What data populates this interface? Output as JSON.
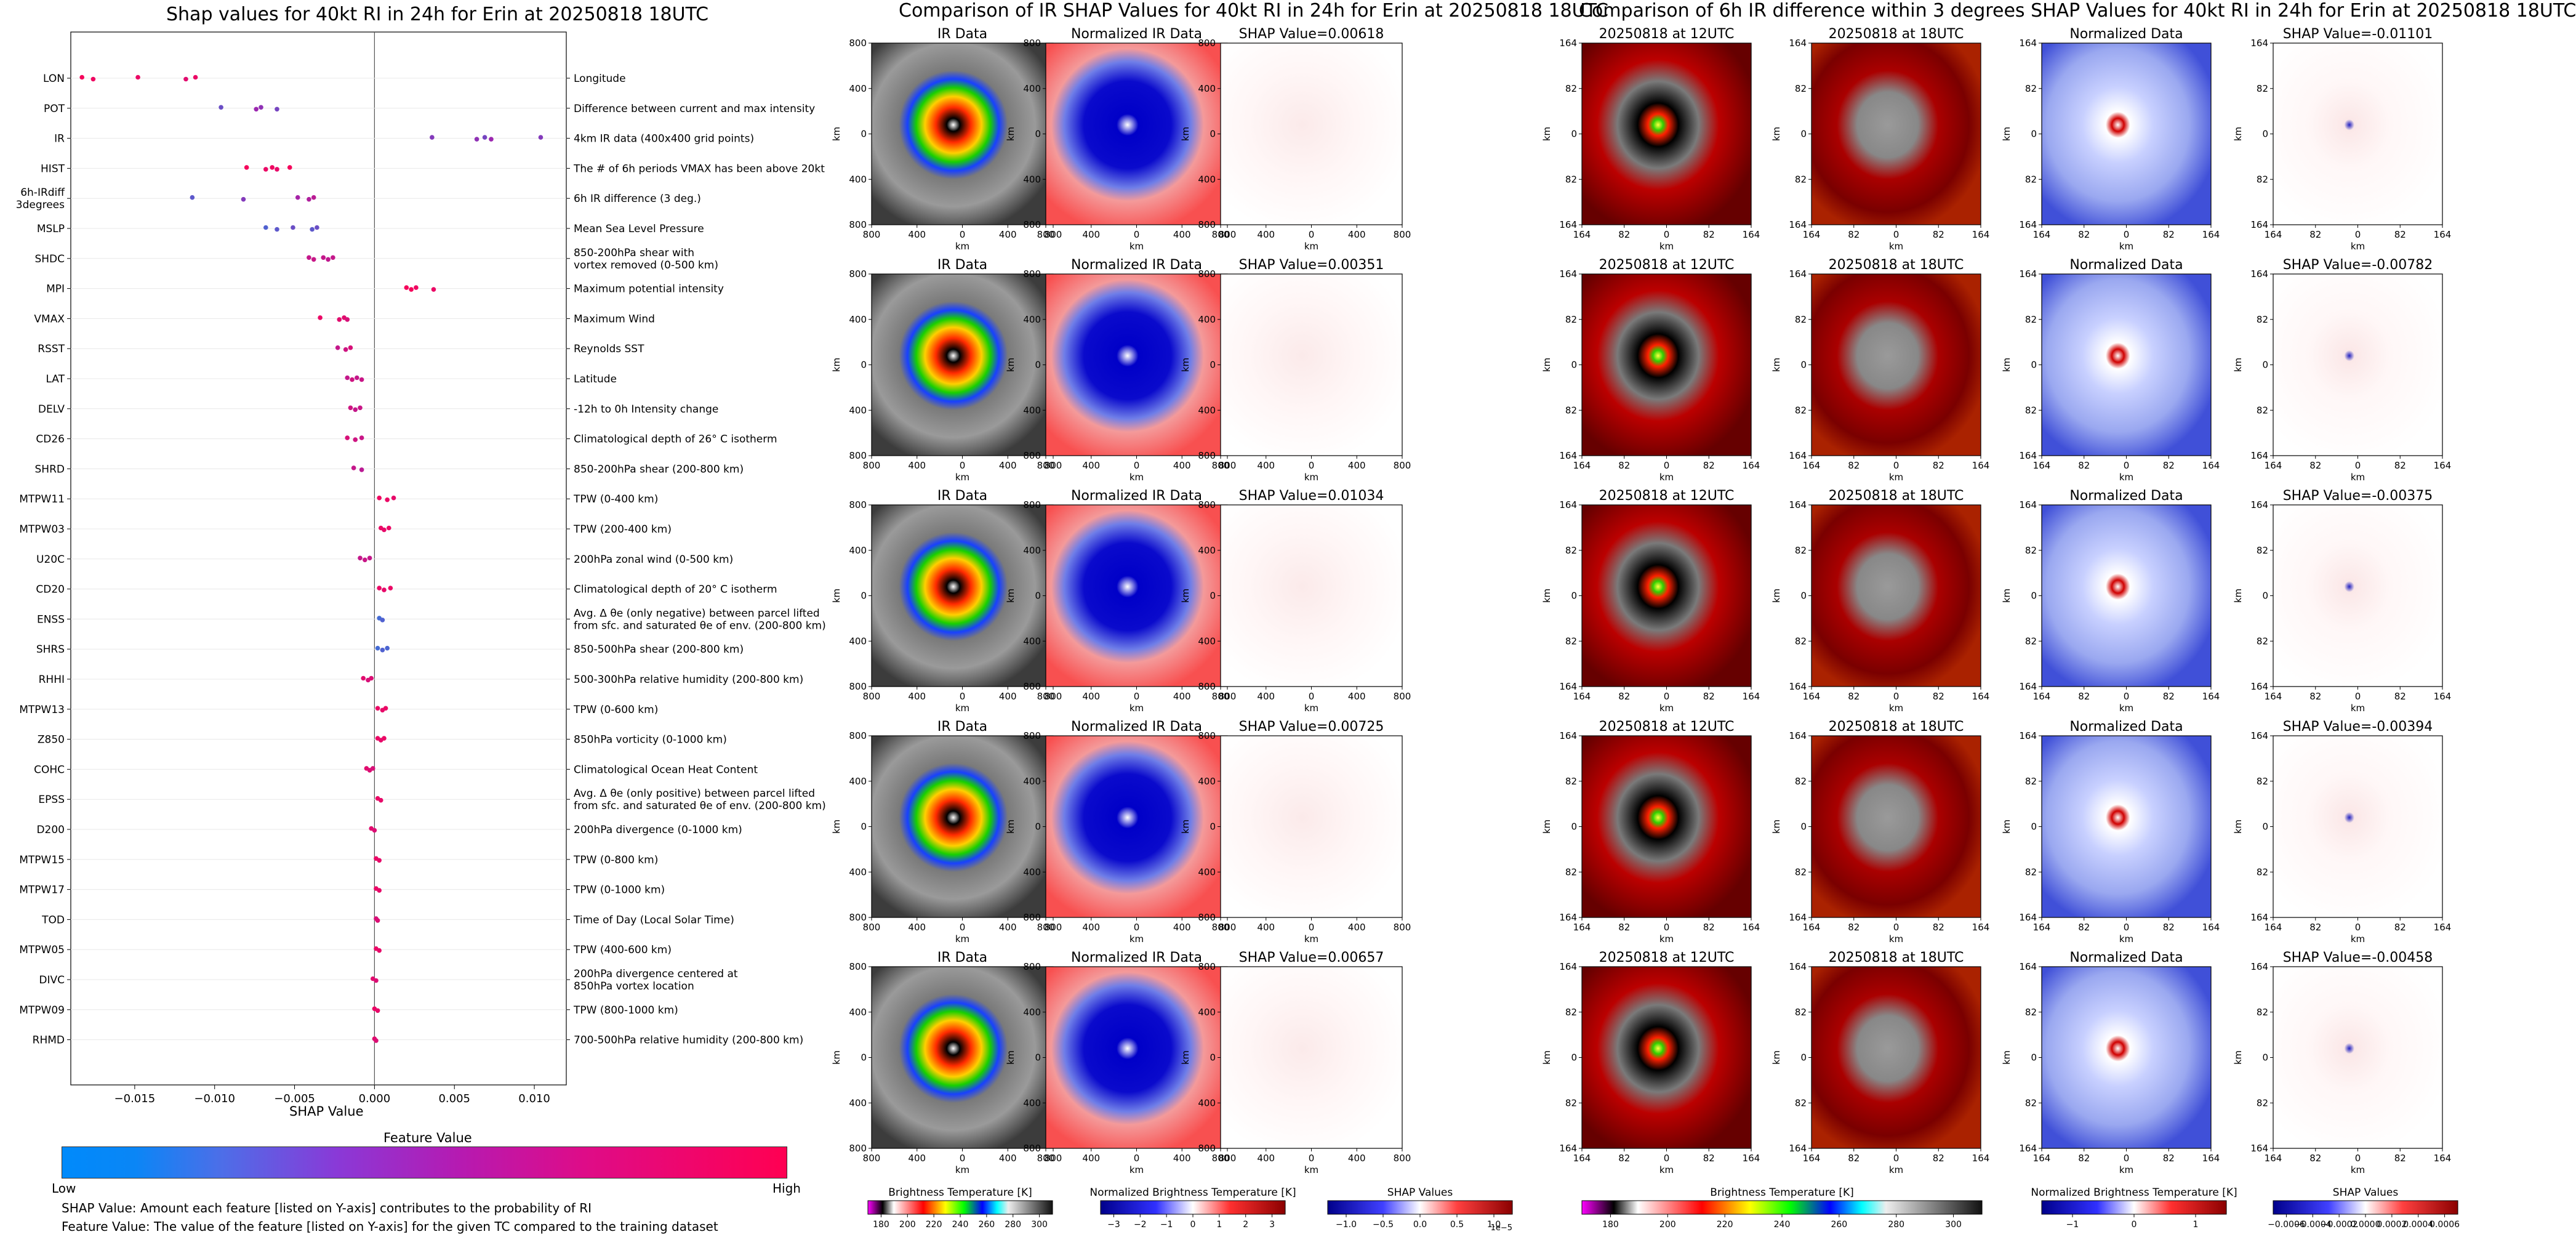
{
  "beeswarm": {
    "title": "Shap values for 40kt RI in 24h for Erin at 20250818 18UTC",
    "xlabel": "SHAP Value",
    "colorbar_label": "Feature Value",
    "low_label": "Low",
    "high_label": "High",
    "note1": "SHAP Value: Amount each feature [listed on Y-axis] contributes to the probability of RI",
    "note2": "Feature Value: The value of the feature [listed on Y-axis] for the given TC compared to the training dataset",
    "colors": {
      "low": "#1e88e5",
      "mid": "#9c27b0",
      "high": "#ff0052"
    }
  },
  "ir_section": {
    "title": "Comparison of IR SHAP Values for 40kt RI in 24h for Erin at 20250818 18UTC",
    "col_titles": [
      "IR Data",
      "Normalized IR Data"
    ],
    "shap_titles": [
      "SHAP Value=0.00618",
      "SHAP Value=0.00351",
      "SHAP Value=0.01034",
      "SHAP Value=0.00725",
      "SHAP Value=0.00657"
    ],
    "axis_label": "km",
    "ticks": [
      "800",
      "400",
      "0",
      "400",
      "800"
    ],
    "cbar_labels": [
      "Brightness Temperature [K]",
      "Normalized Brightness Temperature [K]",
      "SHAP Values"
    ],
    "cbar1_ticks": [
      "180",
      "200",
      "220",
      "240",
      "260",
      "280",
      "300"
    ],
    "cbar2_ticks": [
      "−3",
      "−2",
      "−1",
      "0",
      "1",
      "2",
      "3"
    ],
    "cbar3_ticks": [
      "−1.0",
      "−0.5",
      "0.0",
      "0.5",
      "1.0"
    ],
    "cbar3_exp": "1e−5"
  },
  "diff_section": {
    "title": "Comparison of 6h IR difference within 3 degrees SHAP Values for 40kt RI in 24h for Erin at 20250818 18UTC",
    "col_titles": [
      "20250818 at 12UTC",
      "20250818 at 18UTC",
      "Normalized Data"
    ],
    "shap_titles": [
      "SHAP Value=-0.01101",
      "SHAP Value=-0.00782",
      "SHAP Value=-0.00375",
      "SHAP Value=-0.00394",
      "SHAP Value=-0.00458"
    ],
    "axis_label": "km",
    "ticks": [
      "164",
      "82",
      "0",
      "82",
      "164"
    ],
    "cbar_labels": [
      "Brightness Temperature [K]",
      "Normalized Brightness Temperature [K]",
      "SHAP Values"
    ],
    "cbar1_ticks": [
      "180",
      "200",
      "220",
      "240",
      "260",
      "280",
      "300"
    ],
    "cbar2_ticks": [
      "−1",
      "0",
      "1"
    ],
    "cbar3_ticks": [
      "−0.0006",
      "−0.0004",
      "−0.0002",
      "0.0000",
      "0.0002",
      "0.0004",
      "0.0006"
    ]
  },
  "chart_data": {
    "type": "scatter",
    "title": "Shap values for 40kt RI in 24h for Erin at 20250818 18UTC",
    "xlabel": "SHAP Value",
    "xlim": [
      -0.019,
      0.012
    ],
    "xticks": [
      -0.015,
      -0.01,
      -0.005,
      0.0,
      0.005,
      0.01
    ],
    "xtick_labels": [
      "−0.015",
      "−0.010",
      "−0.005",
      "0.000",
      "0.005",
      "0.010"
    ],
    "grid": false,
    "features": [
      {
        "name": "LON",
        "desc": "Longitude",
        "points": [
          [
            -0.0183,
            0.95
          ],
          [
            -0.0176,
            0.92
          ],
          [
            -0.0148,
            0.9
          ],
          [
            -0.0118,
            0.85
          ],
          [
            -0.0112,
            0.9
          ]
        ]
      },
      {
        "name": "POT",
        "desc": "Difference between current and max intensity",
        "points": [
          [
            -0.0096,
            0.3
          ],
          [
            -0.0074,
            0.5
          ],
          [
            -0.0071,
            0.45
          ],
          [
            -0.0061,
            0.35
          ]
        ]
      },
      {
        "name": "IR",
        "desc": "4km IR data (400x400 grid points)",
        "points": [
          [
            0.0036,
            0.4
          ],
          [
            0.0064,
            0.45
          ],
          [
            0.0069,
            0.35
          ],
          [
            0.0073,
            0.5
          ],
          [
            0.0104,
            0.4
          ]
        ]
      },
      {
        "name": "HIST",
        "desc": "The # of 6h periods VMAX has been above 20kt",
        "points": [
          [
            -0.008,
            0.95
          ],
          [
            -0.0068,
            0.9
          ],
          [
            -0.0064,
            0.92
          ],
          [
            -0.0061,
            0.88
          ],
          [
            -0.0053,
            0.95
          ]
        ]
      },
      {
        "name": "6h-IRdiff\n3degrees",
        "desc": "6h IR difference (3 deg.)",
        "points": [
          [
            -0.0114,
            0.25
          ],
          [
            -0.0082,
            0.4
          ],
          [
            -0.0048,
            0.55
          ],
          [
            -0.0041,
            0.6
          ],
          [
            -0.0038,
            0.65
          ]
        ]
      },
      {
        "name": "MSLP",
        "desc": "Mean Sea Level Pressure",
        "points": [
          [
            -0.0068,
            0.2
          ],
          [
            -0.0061,
            0.25
          ],
          [
            -0.0051,
            0.3
          ],
          [
            -0.0039,
            0.25
          ],
          [
            -0.0036,
            0.3
          ]
        ]
      },
      {
        "name": "SHDC",
        "desc": "850-200hPa shear with\nvortex removed (0-500 km)",
        "points": [
          [
            -0.0041,
            0.7
          ],
          [
            -0.0038,
            0.72
          ],
          [
            -0.0032,
            0.7
          ],
          [
            -0.0029,
            0.68
          ],
          [
            -0.0026,
            0.7
          ]
        ]
      },
      {
        "name": "MPI",
        "desc": "Maximum potential intensity",
        "points": [
          [
            0.002,
            0.95
          ],
          [
            0.0023,
            0.95
          ],
          [
            0.0026,
            0.92
          ],
          [
            0.0037,
            0.9
          ]
        ]
      },
      {
        "name": "VMAX",
        "desc": "Maximum Wind",
        "points": [
          [
            -0.0034,
            0.9
          ],
          [
            -0.0022,
            0.85
          ],
          [
            -0.0019,
            0.85
          ],
          [
            -0.0017,
            0.8
          ]
        ]
      },
      {
        "name": "RSST",
        "desc": "Reynolds SST",
        "points": [
          [
            -0.0023,
            0.7
          ],
          [
            -0.0018,
            0.75
          ],
          [
            -0.0015,
            0.8
          ]
        ]
      },
      {
        "name": "LAT",
        "desc": "Latitude",
        "points": [
          [
            -0.0017,
            0.7
          ],
          [
            -0.0014,
            0.75
          ],
          [
            -0.0011,
            0.7
          ],
          [
            -0.0008,
            0.72
          ]
        ]
      },
      {
        "name": "DELV",
        "desc": "-12h to 0h Intensity change",
        "points": [
          [
            -0.0015,
            0.75
          ],
          [
            -0.0012,
            0.7
          ],
          [
            -0.0009,
            0.72
          ]
        ]
      },
      {
        "name": "CD26",
        "desc": "Climatological depth of 26° C isotherm",
        "points": [
          [
            -0.0017,
            0.8
          ],
          [
            -0.0012,
            0.75
          ],
          [
            -0.0008,
            0.72
          ]
        ]
      },
      {
        "name": "SHRD",
        "desc": "850-200hPa shear (200-800 km)",
        "points": [
          [
            -0.0013,
            0.7
          ],
          [
            -0.0008,
            0.65
          ]
        ]
      },
      {
        "name": "MTPW11",
        "desc": "TPW (0-400 km)",
        "points": [
          [
            0.0003,
            0.92
          ],
          [
            0.0008,
            0.9
          ],
          [
            0.0012,
            0.88
          ]
        ]
      },
      {
        "name": "MTPW03",
        "desc": "TPW (200-400 km)",
        "points": [
          [
            0.0004,
            0.9
          ],
          [
            0.0006,
            0.88
          ],
          [
            0.0009,
            0.9
          ]
        ]
      },
      {
        "name": "U20C",
        "desc": "200hPa zonal wind (0-500 km)",
        "points": [
          [
            -0.0009,
            0.7
          ],
          [
            -0.0006,
            0.72
          ],
          [
            -0.0003,
            0.7
          ]
        ]
      },
      {
        "name": "CD20",
        "desc": "Climatological depth of 20° C isotherm",
        "points": [
          [
            0.0003,
            0.9
          ],
          [
            0.0006,
            0.88
          ],
          [
            0.001,
            0.9
          ]
        ]
      },
      {
        "name": "ENSS",
        "desc": "Avg. Δ θe (only negative) between parcel lifted\nfrom sfc. and saturated θe of env. (200-800 km)",
        "points": [
          [
            0.0003,
            0.15
          ],
          [
            0.0005,
            0.2
          ]
        ]
      },
      {
        "name": "SHRS",
        "desc": "850-500hPa shear (200-800 km)",
        "points": [
          [
            0.0002,
            0.15
          ],
          [
            0.0005,
            0.2
          ],
          [
            0.0008,
            0.18
          ]
        ]
      },
      {
        "name": "RHHI",
        "desc": "500-300hPa relative humidity (200-800 km)",
        "points": [
          [
            -0.0007,
            0.85
          ],
          [
            -0.0004,
            0.8
          ],
          [
            -0.0002,
            0.82
          ]
        ]
      },
      {
        "name": "MTPW13",
        "desc": "TPW (0-600 km)",
        "points": [
          [
            0.0002,
            0.9
          ],
          [
            0.0005,
            0.88
          ],
          [
            0.0007,
            0.9
          ]
        ]
      },
      {
        "name": "Z850",
        "desc": "850hPa vorticity (0-1000 km)",
        "points": [
          [
            0.0002,
            0.9
          ],
          [
            0.0004,
            0.88
          ],
          [
            0.0006,
            0.9
          ]
        ]
      },
      {
        "name": "COHC",
        "desc": "Climatological Ocean Heat Content",
        "points": [
          [
            -0.0005,
            0.85
          ],
          [
            -0.0003,
            0.82
          ],
          [
            -0.0001,
            0.8
          ]
        ]
      },
      {
        "name": "EPSS",
        "desc": "Avg. Δ θe (only positive) between parcel lifted\nfrom sfc. and saturated θe of env. (200-800 km)",
        "points": [
          [
            0.0002,
            0.9
          ],
          [
            0.0004,
            0.88
          ]
        ]
      },
      {
        "name": "D200",
        "desc": "200hPa divergence (0-1000 km)",
        "points": [
          [
            -0.0002,
            0.85
          ],
          [
            0.0,
            0.82
          ]
        ]
      },
      {
        "name": "MTPW15",
        "desc": "TPW (0-800 km)",
        "points": [
          [
            0.0001,
            0.9
          ],
          [
            0.0003,
            0.88
          ]
        ]
      },
      {
        "name": "MTPW17",
        "desc": "TPW (0-1000 km)",
        "points": [
          [
            0.0001,
            0.9
          ],
          [
            0.0003,
            0.88
          ]
        ]
      },
      {
        "name": "TOD",
        "desc": "Time of Day (Local Solar Time)",
        "points": [
          [
            0.0001,
            0.8
          ],
          [
            0.0002,
            0.82
          ]
        ]
      },
      {
        "name": "MTPW05",
        "desc": "TPW (400-600 km)",
        "points": [
          [
            0.0001,
            0.9
          ],
          [
            0.0003,
            0.88
          ]
        ]
      },
      {
        "name": "DIVC",
        "desc": "200hPa divergence centered at\n850hPa vortex location",
        "points": [
          [
            -0.0001,
            0.85
          ],
          [
            0.0001,
            0.82
          ]
        ]
      },
      {
        "name": "MTPW09",
        "desc": "TPW (800-1000 km)",
        "points": [
          [
            0.0,
            0.9
          ],
          [
            0.0002,
            0.88
          ]
        ]
      },
      {
        "name": "RHMD",
        "desc": "700-500hPa relative humidity (200-800 km)",
        "points": [
          [
            0.0,
            0.85
          ],
          [
            0.0001,
            0.82
          ]
        ]
      }
    ]
  }
}
